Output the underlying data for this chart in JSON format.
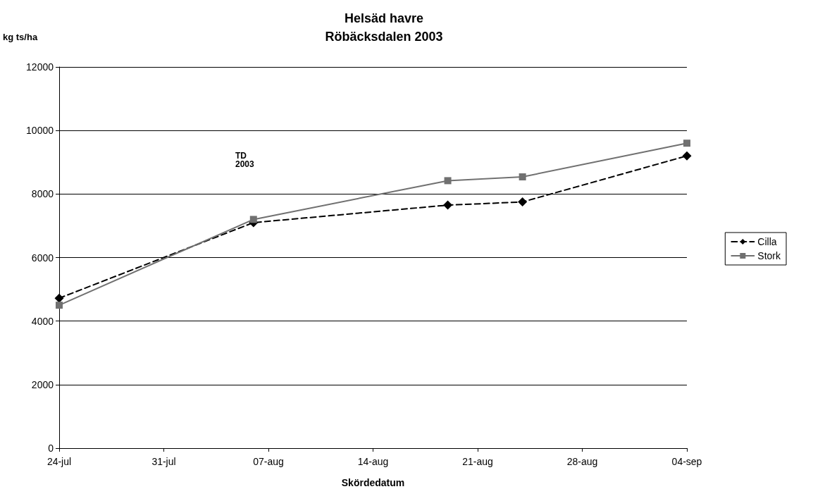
{
  "chart_data": {
    "type": "line",
    "title": "Helsäd havre\nRöbäcksdalen 2003",
    "xlabel": "Skördedatum",
    "ylabel": "kg ts/ha",
    "series": [
      {
        "name": "Cilla",
        "color": "#000000",
        "marker": "diamond",
        "line_style": "dashed",
        "x": [
          "2003-07-24",
          "2003-08-06",
          "2003-08-19",
          "2003-08-24",
          "2003-09-04"
        ],
        "values": [
          4720,
          7100,
          7650,
          7750,
          9200
        ]
      },
      {
        "name": "Stork",
        "color": "#707070",
        "marker": "square",
        "line_style": "solid",
        "x": [
          "2003-07-24",
          "2003-08-06",
          "2003-08-19",
          "2003-08-24",
          "2003-09-04"
        ],
        "values": [
          4500,
          7200,
          8420,
          8540,
          9600
        ]
      }
    ],
    "annotations": [
      "TD\n2003"
    ],
    "xlim": [
      "2003-07-24",
      "2003-09-04"
    ],
    "xticks": [
      {
        "value": "2003-07-24",
        "label": "24-jul"
      },
      {
        "value": "2003-07-31",
        "label": "31-jul"
      },
      {
        "value": "2003-08-07",
        "label": "07-aug"
      },
      {
        "value": "2003-08-14",
        "label": "14-aug"
      },
      {
        "value": "2003-08-21",
        "label": "21-aug"
      },
      {
        "value": "2003-08-28",
        "label": "28-aug"
      },
      {
        "value": "2003-09-04",
        "label": "04-sep"
      }
    ],
    "ylim": [
      0,
      12000
    ],
    "yticks": [
      0,
      2000,
      4000,
      6000,
      8000,
      10000,
      12000
    ],
    "grid": "y",
    "legend": "right"
  }
}
